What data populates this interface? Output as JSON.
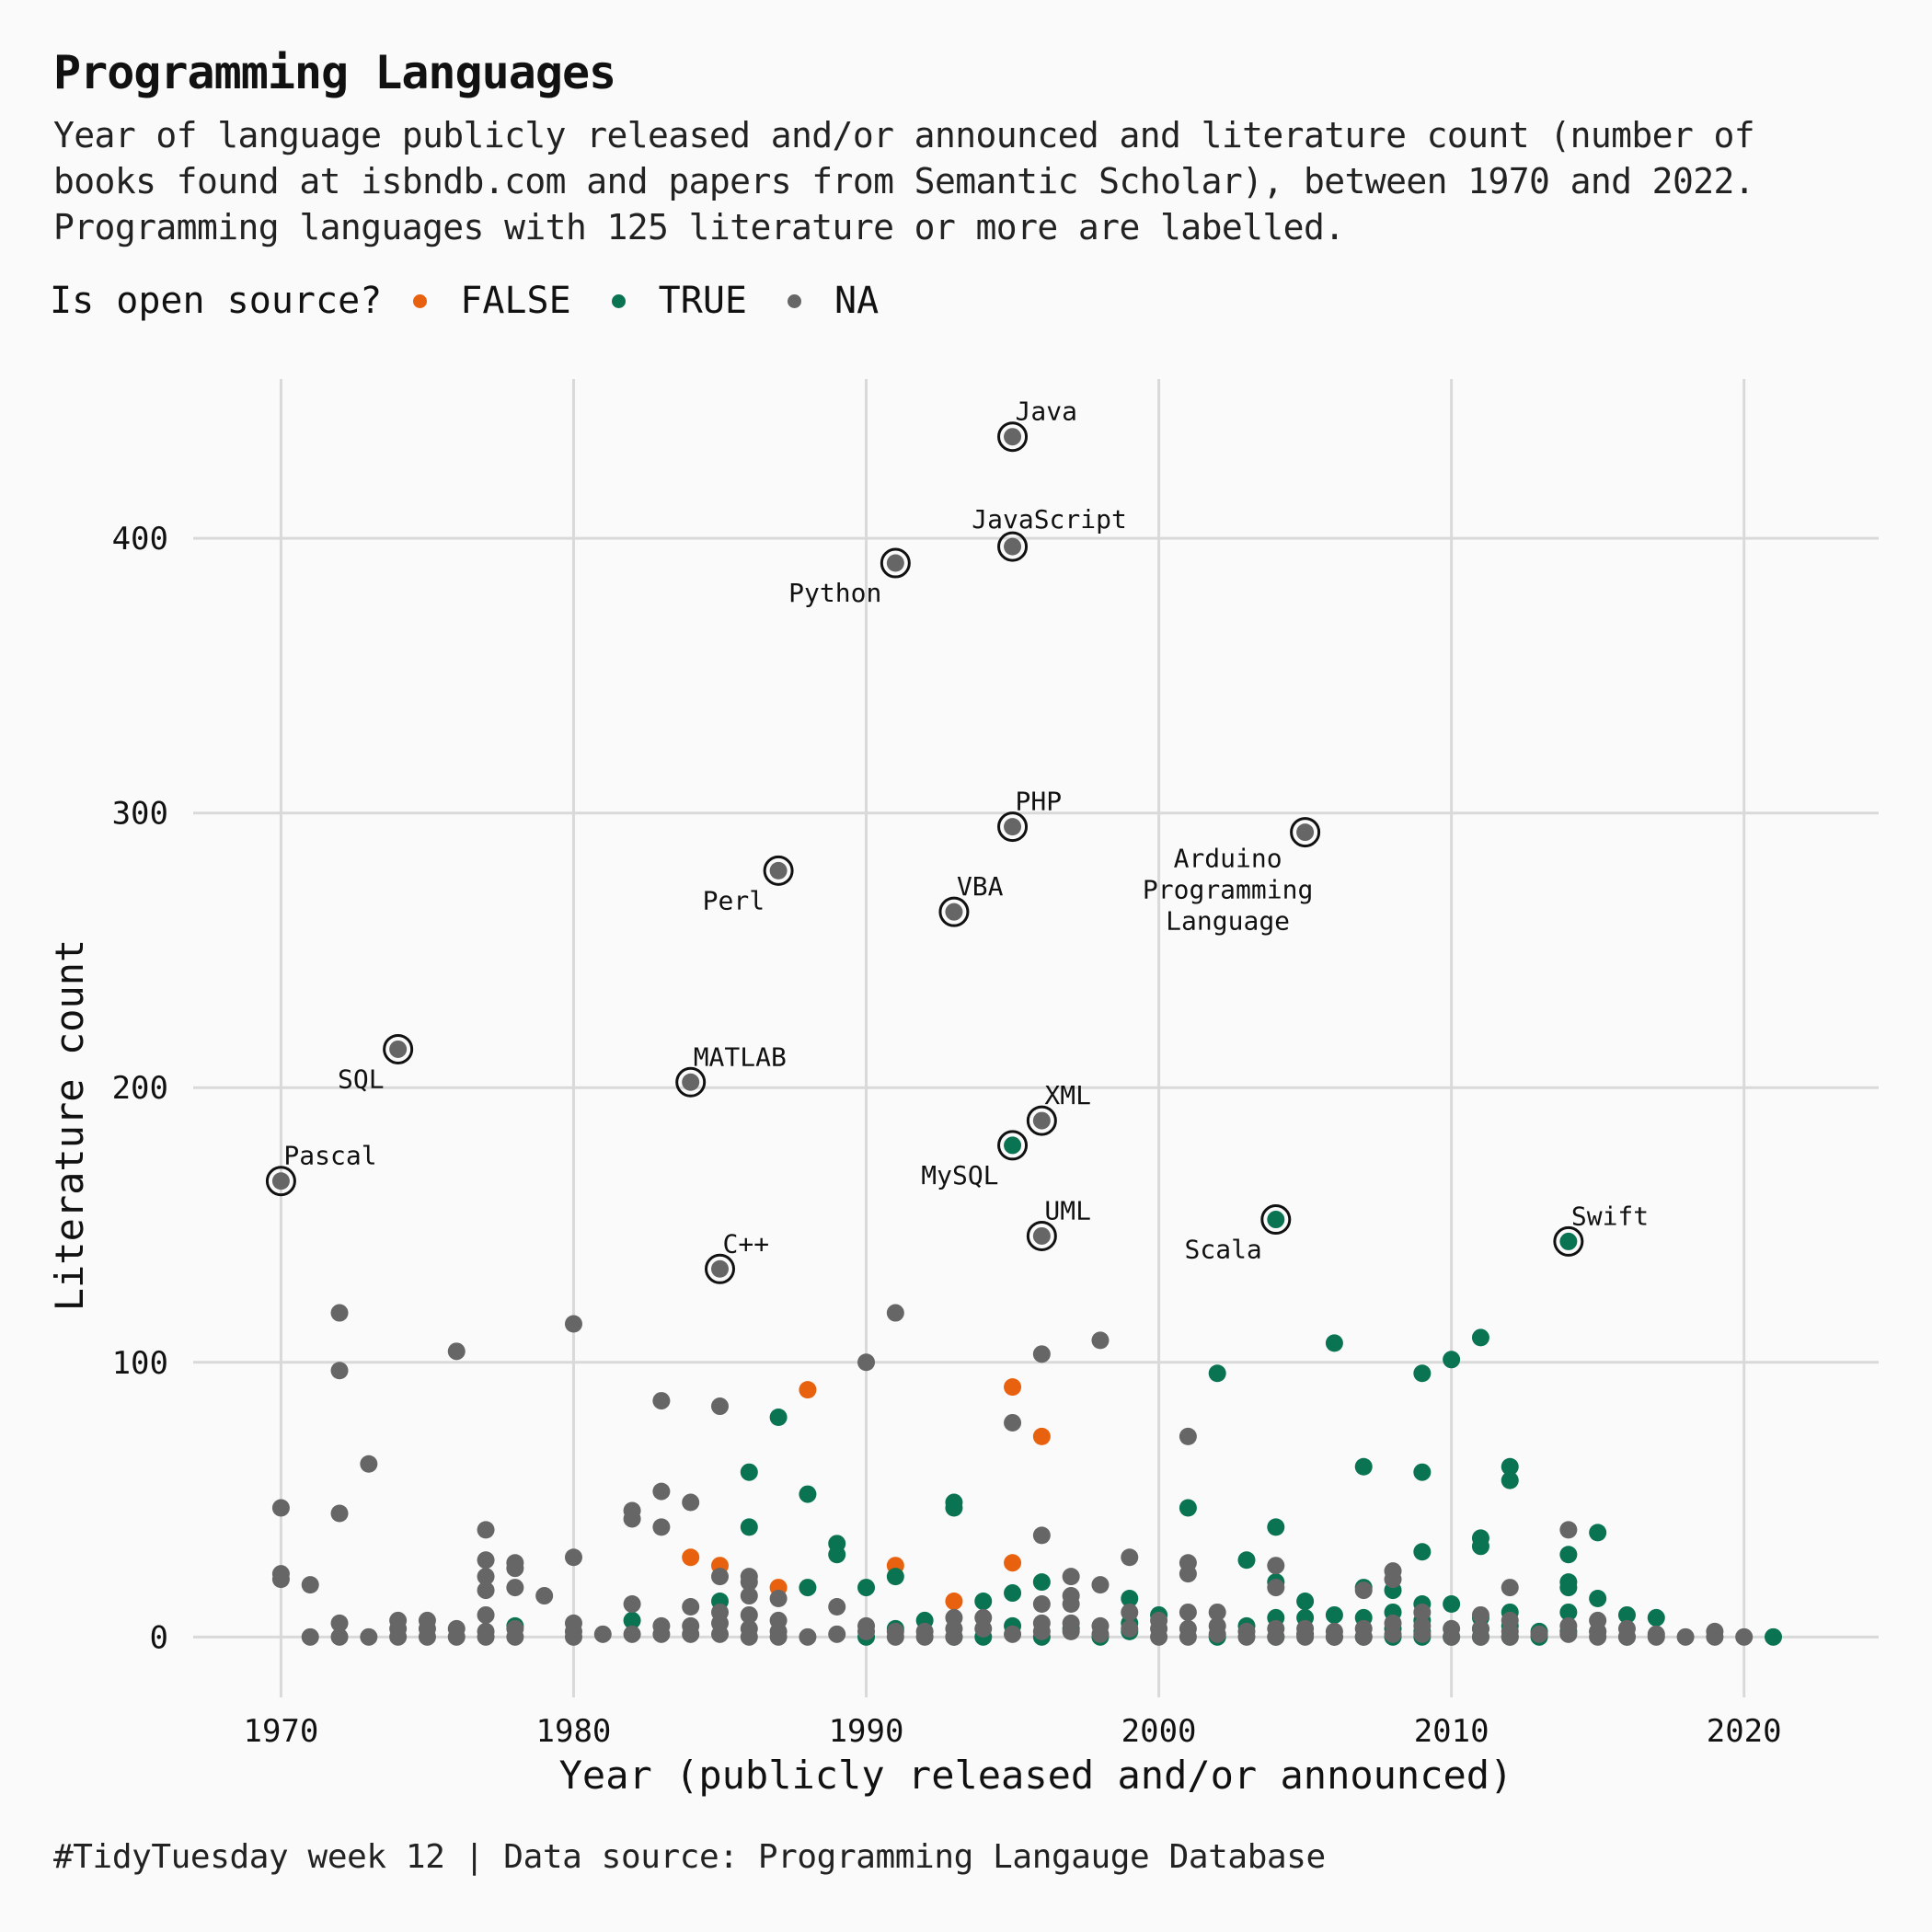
{
  "title": "Programming Languages",
  "subtitle_lines": [
    "Year of language publicly released and/or announced and literature count (number of",
    "books found at isbndb.com and papers from Semantic Scholar), between 1970 and 2022.",
    "Programming languages with 125 literature or more are labelled."
  ],
  "legend": {
    "title": "Is open source?",
    "items": [
      {
        "label": "FALSE",
        "color": "#e8610e"
      },
      {
        "label": "TRUE",
        "color": "#0a7352"
      },
      {
        "label": "NA",
        "color": "#666666"
      }
    ]
  },
  "caption": "#TidyTuesday week 12 | Data source: Programming Langauge Database",
  "chart_data": {
    "type": "scatter",
    "xlabel": "Year (publicly released and/or announced)",
    "ylabel": "Literature count",
    "xlim": [
      1967,
      2024.6
    ],
    "ylim": [
      -22,
      458
    ],
    "xticks": [
      1970,
      1980,
      1990,
      2000,
      2010,
      2020
    ],
    "yticks": [
      0,
      100,
      200,
      300,
      400
    ],
    "grid": true,
    "legend_position": "top-left",
    "colors": {
      "FALSE": "#e8610e",
      "TRUE": "#0a7352",
      "NA": "#666666"
    },
    "labelled": [
      {
        "label": "Java",
        "x": 1995,
        "y": 437,
        "open_source": "NA",
        "anchor": "right-above"
      },
      {
        "label": "JavaScript",
        "x": 1995,
        "y": 397,
        "open_source": "NA",
        "anchor": "center-above"
      },
      {
        "label": "Python",
        "x": 1991,
        "y": 391,
        "open_source": "NA",
        "anchor": "left-below"
      },
      {
        "label": "PHP",
        "x": 1995,
        "y": 295,
        "open_source": "NA",
        "anchor": "right-above"
      },
      {
        "label": "Arduino\nProgramming\nLanguage",
        "x": 2005,
        "y": 293,
        "open_source": "NA",
        "anchor": "left-below-multi"
      },
      {
        "label": "Perl",
        "x": 1987,
        "y": 279,
        "open_source": "NA",
        "anchor": "left-below"
      },
      {
        "label": "VBA",
        "x": 1993,
        "y": 264,
        "open_source": "NA",
        "anchor": "right-above"
      },
      {
        "label": "SQL",
        "x": 1974,
        "y": 214,
        "open_source": "NA",
        "anchor": "left-below"
      },
      {
        "label": "MATLAB",
        "x": 1984,
        "y": 202,
        "open_source": "NA",
        "anchor": "right-above"
      },
      {
        "label": "XML",
        "x": 1996,
        "y": 188,
        "open_source": "NA",
        "anchor": "right-above"
      },
      {
        "label": "MySQL",
        "x": 1995,
        "y": 179,
        "open_source": "TRUE",
        "anchor": "left-below"
      },
      {
        "label": "Pascal",
        "x": 1970,
        "y": 166,
        "open_source": "NA",
        "anchor": "right-above"
      },
      {
        "label": "Scala",
        "x": 2004,
        "y": 152,
        "open_source": "TRUE",
        "anchor": "left-below"
      },
      {
        "label": "UML",
        "x": 1996,
        "y": 146,
        "open_source": "NA",
        "anchor": "right-above"
      },
      {
        "label": "Swift",
        "x": 2014,
        "y": 144,
        "open_source": "TRUE",
        "anchor": "right-above"
      },
      {
        "label": "C++",
        "x": 1985,
        "y": 134,
        "open_source": "NA",
        "anchor": "right-above"
      }
    ],
    "series": [
      {
        "name": "FALSE",
        "points": [
          [
            1984,
            29
          ],
          [
            1985,
            26
          ],
          [
            1987,
            18
          ],
          [
            1988,
            90
          ],
          [
            1991,
            26
          ],
          [
            1993,
            13
          ],
          [
            1995,
            91
          ],
          [
            1995,
            27
          ],
          [
            1996,
            73
          ]
        ]
      },
      {
        "name": "TRUE",
        "points": [
          [
            1978,
            4
          ],
          [
            1982,
            6
          ],
          [
            1985,
            13
          ],
          [
            1986,
            60
          ],
          [
            1986,
            40
          ],
          [
            1987,
            80
          ],
          [
            1988,
            52
          ],
          [
            1988,
            18
          ],
          [
            1989,
            34
          ],
          [
            1989,
            30
          ],
          [
            1990,
            18
          ],
          [
            1990,
            0
          ],
          [
            1991,
            22
          ],
          [
            1991,
            3
          ],
          [
            1992,
            6
          ],
          [
            1993,
            49
          ],
          [
            1993,
            47
          ],
          [
            1993,
            0
          ],
          [
            1994,
            13
          ],
          [
            1994,
            0
          ],
          [
            1995,
            16
          ],
          [
            1995,
            4
          ],
          [
            1996,
            20
          ],
          [
            1996,
            0
          ],
          [
            1997,
            3
          ],
          [
            1998,
            0
          ],
          [
            1999,
            14
          ],
          [
            1999,
            5
          ],
          [
            1999,
            2
          ],
          [
            2000,
            8
          ],
          [
            2001,
            47
          ],
          [
            2002,
            96
          ],
          [
            2002,
            0
          ],
          [
            2003,
            28
          ],
          [
            2003,
            4
          ],
          [
            2004,
            40
          ],
          [
            2004,
            20
          ],
          [
            2004,
            7
          ],
          [
            2004,
            0
          ],
          [
            2005,
            13
          ],
          [
            2005,
            7
          ],
          [
            2005,
            1
          ],
          [
            2006,
            107
          ],
          [
            2006,
            8
          ],
          [
            2006,
            0
          ],
          [
            2007,
            62
          ],
          [
            2007,
            18
          ],
          [
            2007,
            7
          ],
          [
            2007,
            0
          ],
          [
            2008,
            17
          ],
          [
            2008,
            9
          ],
          [
            2008,
            3
          ],
          [
            2008,
            0
          ],
          [
            2009,
            96
          ],
          [
            2009,
            60
          ],
          [
            2009,
            31
          ],
          [
            2009,
            12
          ],
          [
            2009,
            6
          ],
          [
            2009,
            2
          ],
          [
            2009,
            0
          ],
          [
            2010,
            101
          ],
          [
            2010,
            12
          ],
          [
            2010,
            0
          ],
          [
            2011,
            109
          ],
          [
            2011,
            36
          ],
          [
            2011,
            33
          ],
          [
            2011,
            7
          ],
          [
            2011,
            3
          ],
          [
            2011,
            0
          ],
          [
            2012,
            62
          ],
          [
            2012,
            57
          ],
          [
            2012,
            9
          ],
          [
            2012,
            4
          ],
          [
            2012,
            0
          ],
          [
            2013,
            2
          ],
          [
            2013,
            0
          ],
          [
            2014,
            30
          ],
          [
            2014,
            20
          ],
          [
            2014,
            18
          ],
          [
            2014,
            9
          ],
          [
            2014,
            2
          ],
          [
            2015,
            38
          ],
          [
            2015,
            14
          ],
          [
            2015,
            2
          ],
          [
            2016,
            8
          ],
          [
            2016,
            0
          ],
          [
            2017,
            7
          ],
          [
            2021,
            0
          ]
        ]
      },
      {
        "name": "NA",
        "points": [
          [
            1970,
            47
          ],
          [
            1970,
            23
          ],
          [
            1970,
            21
          ],
          [
            1971,
            19
          ],
          [
            1971,
            0
          ],
          [
            1972,
            118
          ],
          [
            1972,
            97
          ],
          [
            1972,
            45
          ],
          [
            1972,
            5
          ],
          [
            1972,
            0
          ],
          [
            1973,
            63
          ],
          [
            1973,
            0
          ],
          [
            1974,
            6
          ],
          [
            1974,
            3
          ],
          [
            1974,
            0
          ],
          [
            1975,
            6
          ],
          [
            1975,
            3
          ],
          [
            1975,
            0
          ],
          [
            1976,
            104
          ],
          [
            1976,
            3
          ],
          [
            1976,
            0
          ],
          [
            1977,
            39
          ],
          [
            1977,
            28
          ],
          [
            1977,
            22
          ],
          [
            1977,
            17
          ],
          [
            1977,
            8
          ],
          [
            1977,
            2
          ],
          [
            1977,
            0
          ],
          [
            1978,
            27
          ],
          [
            1978,
            25
          ],
          [
            1978,
            18
          ],
          [
            1978,
            3
          ],
          [
            1978,
            0
          ],
          [
            1979,
            15
          ],
          [
            1980,
            114
          ],
          [
            1980,
            29
          ],
          [
            1980,
            5
          ],
          [
            1980,
            2
          ],
          [
            1980,
            0
          ],
          [
            1981,
            1
          ],
          [
            1982,
            46
          ],
          [
            1982,
            43
          ],
          [
            1982,
            12
          ],
          [
            1982,
            1
          ],
          [
            1983,
            86
          ],
          [
            1983,
            53
          ],
          [
            1983,
            40
          ],
          [
            1983,
            4
          ],
          [
            1983,
            1
          ],
          [
            1984,
            49
          ],
          [
            1984,
            11
          ],
          [
            1984,
            4
          ],
          [
            1984,
            1
          ],
          [
            1985,
            84
          ],
          [
            1985,
            22
          ],
          [
            1985,
            9
          ],
          [
            1985,
            5
          ],
          [
            1985,
            1
          ],
          [
            1986,
            22
          ],
          [
            1986,
            20
          ],
          [
            1986,
            15
          ],
          [
            1986,
            8
          ],
          [
            1986,
            3
          ],
          [
            1986,
            0
          ],
          [
            1987,
            14
          ],
          [
            1987,
            6
          ],
          [
            1987,
            2
          ],
          [
            1987,
            0
          ],
          [
            1988,
            0
          ],
          [
            1989,
            11
          ],
          [
            1989,
            1
          ],
          [
            1990,
            100
          ],
          [
            1990,
            4
          ],
          [
            1990,
            2
          ],
          [
            1991,
            118
          ],
          [
            1991,
            2
          ],
          [
            1991,
            0
          ],
          [
            1992,
            2
          ],
          [
            1992,
            0
          ],
          [
            1993,
            7
          ],
          [
            1993,
            3
          ],
          [
            1993,
            0
          ],
          [
            1994,
            7
          ],
          [
            1994,
            3
          ],
          [
            1995,
            78
          ],
          [
            1995,
            1
          ],
          [
            1996,
            103
          ],
          [
            1996,
            37
          ],
          [
            1996,
            12
          ],
          [
            1996,
            5
          ],
          [
            1996,
            2
          ],
          [
            1997,
            22
          ],
          [
            1997,
            15
          ],
          [
            1997,
            12
          ],
          [
            1997,
            5
          ],
          [
            1997,
            2
          ],
          [
            1998,
            108
          ],
          [
            1998,
            19
          ],
          [
            1998,
            4
          ],
          [
            1998,
            1
          ],
          [
            1999,
            29
          ],
          [
            1999,
            9
          ],
          [
            1999,
            3
          ],
          [
            2000,
            6
          ],
          [
            2000,
            3
          ],
          [
            2000,
            0
          ],
          [
            2001,
            73
          ],
          [
            2001,
            27
          ],
          [
            2001,
            23
          ],
          [
            2001,
            9
          ],
          [
            2001,
            3
          ],
          [
            2001,
            0
          ],
          [
            2002,
            9
          ],
          [
            2002,
            4
          ],
          [
            2002,
            1
          ],
          [
            2003,
            2
          ],
          [
            2003,
            0
          ],
          [
            2004,
            26
          ],
          [
            2004,
            18
          ],
          [
            2004,
            3
          ],
          [
            2004,
            0
          ],
          [
            2005,
            3
          ],
          [
            2005,
            0
          ],
          [
            2006,
            2
          ],
          [
            2006,
            0
          ],
          [
            2007,
            17
          ],
          [
            2007,
            3
          ],
          [
            2007,
            0
          ],
          [
            2008,
            24
          ],
          [
            2008,
            21
          ],
          [
            2008,
            5
          ],
          [
            2008,
            1
          ],
          [
            2009,
            9
          ],
          [
            2009,
            4
          ],
          [
            2009,
            1
          ],
          [
            2010,
            3
          ],
          [
            2010,
            0
          ],
          [
            2011,
            8
          ],
          [
            2011,
            3
          ],
          [
            2011,
            0
          ],
          [
            2012,
            18
          ],
          [
            2012,
            6
          ],
          [
            2012,
            2
          ],
          [
            2012,
            0
          ],
          [
            2013,
            1
          ],
          [
            2014,
            39
          ],
          [
            2014,
            4
          ],
          [
            2014,
            1
          ],
          [
            2015,
            6
          ],
          [
            2015,
            2
          ],
          [
            2015,
            0
          ],
          [
            2016,
            3
          ],
          [
            2016,
            0
          ],
          [
            2017,
            1
          ],
          [
            2017,
            0
          ],
          [
            2018,
            0
          ],
          [
            2019,
            2
          ],
          [
            2019,
            0
          ],
          [
            2020,
            0
          ]
        ]
      }
    ]
  }
}
